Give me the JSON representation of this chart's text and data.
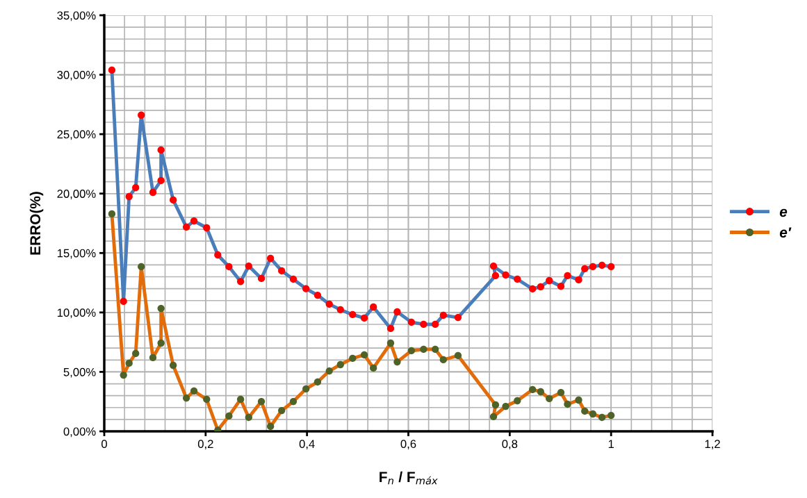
{
  "chart_data": {
    "type": "line",
    "xlabel": "F$_{n}$ / F$_{máx}$",
    "ylabel": "ERRO(%)",
    "x": [
      0.015,
      0.038,
      0.049,
      0.062,
      0.073,
      0.096,
      0.112,
      0.112,
      0.136,
      0.162,
      0.177,
      0.202,
      0.224,
      0.246,
      0.269,
      0.285,
      0.31,
      0.328,
      0.35,
      0.373,
      0.398,
      0.421,
      0.444,
      0.466,
      0.49,
      0.513,
      0.531,
      0.565,
      0.578,
      0.606,
      0.63,
      0.653,
      0.669,
      0.698,
      0.772,
      0.768,
      0.792,
      0.815,
      0.845,
      0.861,
      0.878,
      0.901,
      0.914,
      0.936,
      0.948,
      0.964,
      0.982,
      1.0
    ],
    "series": [
      {
        "name": "e",
        "color": "#4a7ebb",
        "colors": [
          "#ff0000",
          "#ff0000",
          "#ff0000",
          "#ff0000",
          "#ff0000",
          "#ff0000",
          "#ff0000",
          "#ff0000",
          "#ff0000",
          "#ff0000",
          "#ff0000",
          "#ff0000",
          "#ff0000",
          "#ff0000",
          "#ff0000",
          "#ff0000",
          "#ff0000",
          "#ff0000",
          "#ff0000",
          "#ff0000",
          "#ff0000",
          "#ff0000",
          "#ff0000",
          "#ff0000",
          "#ff0000",
          "#ff0000",
          "#ff0000",
          "#ff0000",
          "#ff0000",
          "#ff0000",
          "#ff0000",
          "#ff0000",
          "#ff0000",
          "#ff0000",
          "#ff0000",
          "#ff0000",
          "#ff0000",
          "#ff0000",
          "#ff0000",
          "#ff0000",
          "#ff0000",
          "#ff0000",
          "#ff0000",
          "#ff0000",
          "#ff0000",
          "#ff0000",
          "#ff0000",
          "#ff0000"
        ],
        "values": [
          30.39,
          10.93,
          19.75,
          20.5,
          26.6,
          20.1,
          21.1,
          23.67,
          19.46,
          17.18,
          17.7,
          17.12,
          14.84,
          13.85,
          12.6,
          13.9,
          12.86,
          14.55,
          13.5,
          12.8,
          12.0,
          11.45,
          10.7,
          10.23,
          9.82,
          9.53,
          10.46,
          8.65,
          10.05,
          9.18,
          9.0,
          9.0,
          9.76,
          9.58,
          13.1,
          13.9,
          13.15,
          12.8,
          11.98,
          12.16,
          12.68,
          12.2,
          13.1,
          12.74,
          13.68,
          13.85,
          13.97,
          13.85
        ]
      },
      {
        "name": "e′",
        "color": "#e36c0a",
        "colors": [
          "#4f6228",
          "#4f6228",
          "#4f6228",
          "#4f6228",
          "#4f6228",
          "#4f6228",
          "#4f6228",
          "#4f6228",
          "#4f6228",
          "#4f6228",
          "#4f6228",
          "#4f6228",
          "#4f6228",
          "#4f6228",
          "#4f6228",
          "#4f6228",
          "#4f6228",
          "#4f6228",
          "#4f6228",
          "#4f6228",
          "#4f6228",
          "#4f6228",
          "#4f6228",
          "#4f6228",
          "#4f6228",
          "#4f6228",
          "#4f6228",
          "#4f6228",
          "#4f6228",
          "#4f6228",
          "#4f6228",
          "#4f6228",
          "#4f6228",
          "#4f6228",
          "#4f6228",
          "#4f6228",
          "#4f6228",
          "#4f6228",
          "#4f6228",
          "#4f6228",
          "#4f6228",
          "#4f6228",
          "#4f6228",
          "#4f6228",
          "#4f6228",
          "#4f6228",
          "#4f6228",
          "#4f6228"
        ],
        "values": [
          18.29,
          4.73,
          5.73,
          6.55,
          13.85,
          6.2,
          7.42,
          10.34,
          5.55,
          2.8,
          3.39,
          2.69,
          0.1,
          1.29,
          2.69,
          1.17,
          2.51,
          0.41,
          1.75,
          2.51,
          3.57,
          4.15,
          5.08,
          5.61,
          6.14,
          6.43,
          5.32,
          7.42,
          5.84,
          6.78,
          6.9,
          6.9,
          6.02,
          6.37,
          2.22,
          1.23,
          2.1,
          2.57,
          3.51,
          3.33,
          2.75,
          3.27,
          2.28,
          2.63,
          1.7,
          1.46,
          1.17,
          1.34
        ]
      }
    ],
    "xlim": [
      0,
      1.2
    ],
    "xticks": [
      0,
      {
        "value": 0.2,
        "label": "0,2"
      },
      {
        "value": 0.4,
        "label": "0,4"
      },
      {
        "value": 0.6,
        "label": "0,6"
      },
      {
        "value": 0.8,
        "label": "0,8"
      },
      1,
      {
        "value": 1.2,
        "label": "1,2"
      }
    ],
    "ylim": [
      0,
      35
    ],
    "yticks": [
      {
        "value": 0,
        "label": "0,00%"
      },
      {
        "value": 5,
        "label": "5,00%"
      },
      {
        "value": 10,
        "label": "10,00%"
      },
      {
        "value": 15,
        "label": "15,00%"
      },
      {
        "value": 20,
        "label": "20,00%"
      },
      {
        "value": 25,
        "label": "25,00%"
      },
      {
        "value": 30,
        "label": "30,00%"
      },
      {
        "value": 35,
        "label": "35,00%"
      }
    ],
    "grid": true,
    "legend": "right",
    "marker": "circle",
    "line_style": "solid"
  }
}
